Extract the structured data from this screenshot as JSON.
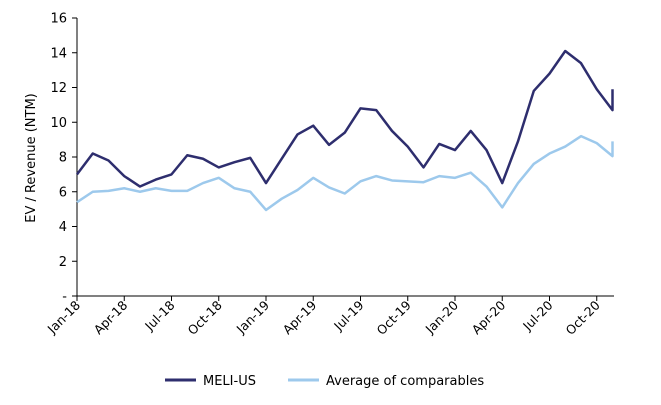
{
  "chart_data": {
    "type": "line",
    "ylabel": "EV / Revenue (NTM)",
    "ylim": [
      0,
      16
    ],
    "y_ticks": [
      {
        "value": 0,
        "label": "-"
      },
      {
        "value": 2,
        "label": "2"
      },
      {
        "value": 4,
        "label": "4"
      },
      {
        "value": 6,
        "label": "6"
      },
      {
        "value": 8,
        "label": "8"
      },
      {
        "value": 10,
        "label": "10"
      },
      {
        "value": 12,
        "label": "12"
      },
      {
        "value": 14,
        "label": "14"
      },
      {
        "value": 16,
        "label": "16"
      }
    ],
    "x_tick_labels": [
      "Jan-18",
      "Apr-18",
      "Jul-18",
      "Oct-18",
      "Jan-19",
      "Apr-19",
      "Jul-19",
      "Oct-19",
      "Jan-20",
      "Apr-20",
      "Jul-20",
      "Oct-20"
    ],
    "x_tick_index": [
      0,
      3,
      6,
      9,
      12,
      15,
      18,
      21,
      24,
      27,
      30,
      33
    ],
    "n_points": 35,
    "grid": false,
    "legend_position": "bottom",
    "series": [
      {
        "name": "MELI-US",
        "color": "#2e2e6e",
        "values": [
          7.0,
          8.2,
          7.8,
          6.9,
          6.3,
          6.7,
          7.0,
          8.1,
          7.9,
          7.4,
          7.7,
          7.95,
          6.5,
          7.9,
          9.3,
          9.8,
          8.7,
          9.4,
          10.8,
          10.7,
          9.5,
          8.6,
          7.4,
          8.75,
          8.4,
          9.5,
          8.4,
          6.5,
          8.9,
          11.8,
          12.8,
          14.1,
          13.4,
          11.9,
          10.7
        ],
        "end_spike": 11.9
      },
      {
        "name": "Average of comparables",
        "color": "#9dc9ec",
        "values": [
          5.4,
          6.0,
          6.05,
          6.2,
          6.0,
          6.2,
          6.05,
          6.05,
          6.5,
          6.8,
          6.2,
          6.0,
          4.95,
          5.6,
          6.1,
          6.8,
          6.25,
          5.9,
          6.6,
          6.9,
          6.65,
          6.6,
          6.55,
          6.9,
          6.8,
          7.1,
          6.3,
          5.1,
          6.5,
          7.6,
          8.2,
          8.6,
          9.2,
          8.8,
          8.05
        ],
        "end_spike": 8.9
      }
    ]
  }
}
